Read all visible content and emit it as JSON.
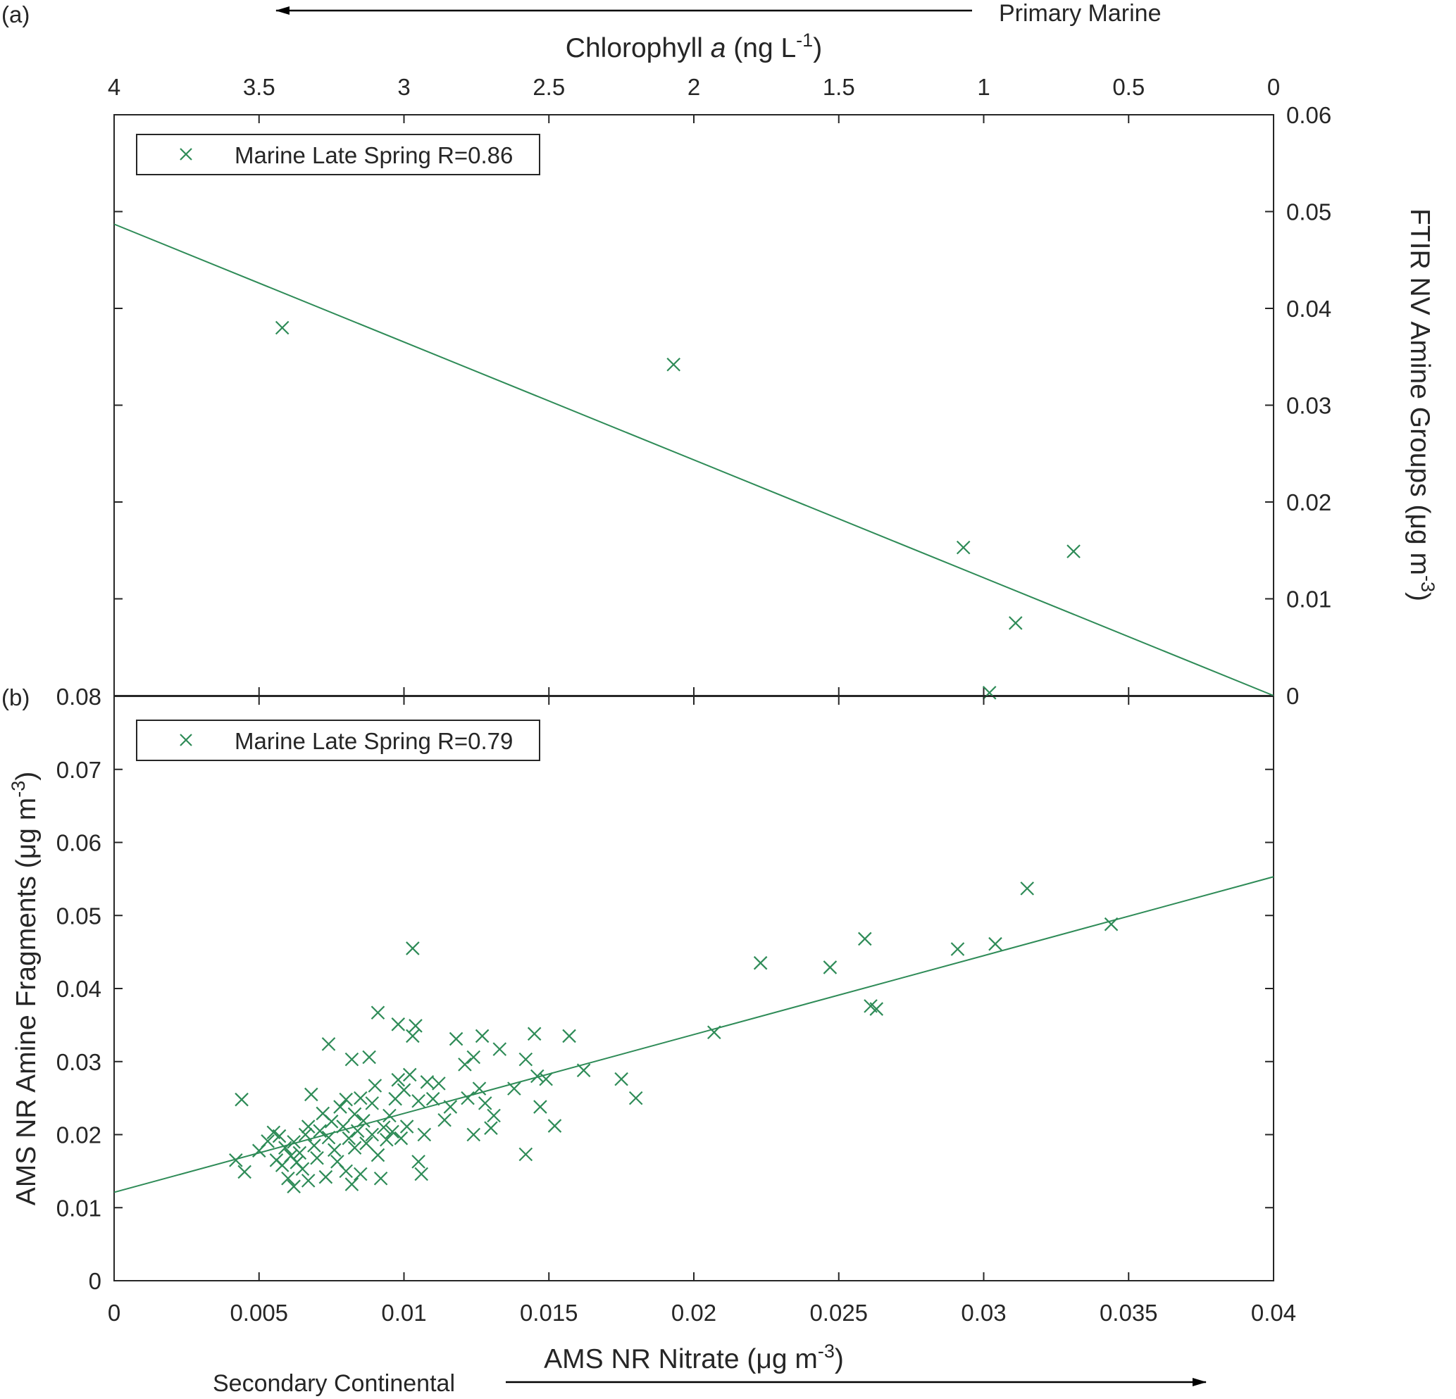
{
  "chart_data": [
    {
      "panel_label": "(a)",
      "type": "scatter",
      "xlabel": {
        "pre": "Chlorophyll ",
        "ital": "a",
        "post": " (ng  L",
        "sup": "-1",
        "end": ")"
      },
      "ylabel": {
        "pre": "FTIR NV Amine Groups (μg m",
        "sup": "-3",
        "end": ")"
      },
      "xlim": [
        4,
        0
      ],
      "ylim": [
        0,
        0.06
      ],
      "x_ticks": [
        "4",
        "3.5",
        "3",
        "2.5",
        "2",
        "1.5",
        "1",
        "0.5",
        "0"
      ],
      "x_tick_values": [
        4,
        3.5,
        3,
        2.5,
        2,
        1.5,
        1,
        0.5,
        0
      ],
      "y_ticks": [
        "0",
        "0.01",
        "0.02",
        "0.03",
        "0.04",
        "0.05",
        "0.06"
      ],
      "y_tick_values": [
        0,
        0.01,
        0.02,
        0.03,
        0.04,
        0.05,
        0.06
      ],
      "direction_label": "Primary Marine",
      "color": "#2e8b57",
      "legend": {
        "label": "Marine Late Spring R=0.86",
        "position": "top-left"
      },
      "points": [
        [
          3.42,
          0.038
        ],
        [
          2.07,
          0.0342
        ],
        [
          1.07,
          0.0153
        ],
        [
          0.69,
          0.0149
        ],
        [
          0.89,
          0.0075
        ],
        [
          0.98,
          0.0003
        ]
      ],
      "fit_line": [
        [
          4,
          0.0487
        ],
        [
          0,
          0.0
        ]
      ]
    },
    {
      "panel_label": "(b)",
      "type": "scatter",
      "xlabel": {
        "pre": "AMS NR Nitrate (μg m",
        "sup": "-3",
        "end": ")"
      },
      "ylabel": {
        "pre": "AMS NR Amine Fragments (μg m",
        "sup": "-3",
        "end": ")"
      },
      "xlim": [
        0,
        0.04
      ],
      "ylim": [
        0,
        0.08
      ],
      "x_ticks": [
        "0",
        "0.005",
        "0.01",
        "0.015",
        "0.02",
        "0.025",
        "0.03",
        "0.035",
        "0.04"
      ],
      "x_tick_values": [
        0,
        0.005,
        0.01,
        0.015,
        0.02,
        0.025,
        0.03,
        0.035,
        0.04
      ],
      "y_ticks": [
        "0",
        "0.01",
        "0.02",
        "0.03",
        "0.04",
        "0.05",
        "0.06",
        "0.07",
        "0.08"
      ],
      "y_tick_values": [
        0,
        0.01,
        0.02,
        0.03,
        0.04,
        0.05,
        0.06,
        0.07,
        0.08
      ],
      "direction_label": "Secondary Continental",
      "color": "#2e8b57",
      "legend": {
        "label": "Marine Late Spring R=0.79",
        "position": "top-left"
      },
      "points": [
        [
          0.0044,
          0.0248
        ],
        [
          0.0042,
          0.0165
        ],
        [
          0.0045,
          0.0149
        ],
        [
          0.005,
          0.0178
        ],
        [
          0.0053,
          0.0191
        ],
        [
          0.0055,
          0.0203
        ],
        [
          0.0056,
          0.0165
        ],
        [
          0.0057,
          0.0198
        ],
        [
          0.0058,
          0.0158
        ],
        [
          0.0059,
          0.0182
        ],
        [
          0.006,
          0.014
        ],
        [
          0.0061,
          0.0171
        ],
        [
          0.0062,
          0.0129
        ],
        [
          0.0062,
          0.019
        ],
        [
          0.0063,
          0.0162
        ],
        [
          0.0064,
          0.0175
        ],
        [
          0.0065,
          0.0153
        ],
        [
          0.0066,
          0.02
        ],
        [
          0.0067,
          0.0211
        ],
        [
          0.0067,
          0.0137
        ],
        [
          0.0068,
          0.0255
        ],
        [
          0.0069,
          0.0185
        ],
        [
          0.007,
          0.0168
        ],
        [
          0.0071,
          0.0205
        ],
        [
          0.0072,
          0.0229
        ],
        [
          0.0073,
          0.0142
        ],
        [
          0.0074,
          0.0324
        ],
        [
          0.0074,
          0.0196
        ],
        [
          0.0075,
          0.0218
        ],
        [
          0.0076,
          0.0179
        ],
        [
          0.0077,
          0.0163
        ],
        [
          0.0078,
          0.0238
        ],
        [
          0.0079,
          0.0211
        ],
        [
          0.008,
          0.015
        ],
        [
          0.008,
          0.0248
        ],
        [
          0.0081,
          0.0195
        ],
        [
          0.0082,
          0.0132
        ],
        [
          0.0082,
          0.0303
        ],
        [
          0.0083,
          0.0228
        ],
        [
          0.0083,
          0.0182
        ],
        [
          0.0084,
          0.0205
        ],
        [
          0.0085,
          0.025
        ],
        [
          0.0085,
          0.0146
        ],
        [
          0.0086,
          0.0219
        ],
        [
          0.0087,
          0.0188
        ],
        [
          0.0088,
          0.0306
        ],
        [
          0.0089,
          0.0243
        ],
        [
          0.0089,
          0.02
        ],
        [
          0.009,
          0.0267
        ],
        [
          0.0091,
          0.0367
        ],
        [
          0.0091,
          0.0172
        ],
        [
          0.0092,
          0.014
        ],
        [
          0.0093,
          0.021
        ],
        [
          0.0094,
          0.0193
        ],
        [
          0.0095,
          0.0226
        ],
        [
          0.0096,
          0.0204
        ],
        [
          0.0097,
          0.0249
        ],
        [
          0.0098,
          0.0351
        ],
        [
          0.0098,
          0.0275
        ],
        [
          0.0099,
          0.0195
        ],
        [
          0.01,
          0.0261
        ],
        [
          0.0101,
          0.0211
        ],
        [
          0.0102,
          0.0282
        ],
        [
          0.0103,
          0.0335
        ],
        [
          0.0103,
          0.0455
        ],
        [
          0.0104,
          0.0349
        ],
        [
          0.0105,
          0.0246
        ],
        [
          0.0105,
          0.0163
        ],
        [
          0.0106,
          0.0146
        ],
        [
          0.0107,
          0.02
        ],
        [
          0.0108,
          0.0272
        ],
        [
          0.011,
          0.0249
        ],
        [
          0.0112,
          0.027
        ],
        [
          0.0114,
          0.022
        ],
        [
          0.0116,
          0.0238
        ],
        [
          0.0118,
          0.0331
        ],
        [
          0.0121,
          0.0296
        ],
        [
          0.0122,
          0.025
        ],
        [
          0.0124,
          0.0306
        ],
        [
          0.0124,
          0.02
        ],
        [
          0.0126,
          0.0263
        ],
        [
          0.0127,
          0.0335
        ],
        [
          0.0128,
          0.0243
        ],
        [
          0.013,
          0.0209
        ],
        [
          0.0131,
          0.0226
        ],
        [
          0.0133,
          0.0317
        ],
        [
          0.0138,
          0.0263
        ],
        [
          0.0142,
          0.0303
        ],
        [
          0.0142,
          0.0173
        ],
        [
          0.0145,
          0.0338
        ],
        [
          0.0146,
          0.028
        ],
        [
          0.0147,
          0.0238
        ],
        [
          0.0149,
          0.0276
        ],
        [
          0.0152,
          0.0212
        ],
        [
          0.0157,
          0.0335
        ],
        [
          0.0162,
          0.0288
        ],
        [
          0.0175,
          0.0276
        ],
        [
          0.018,
          0.025
        ],
        [
          0.0207,
          0.034
        ],
        [
          0.0223,
          0.0435
        ],
        [
          0.0247,
          0.0429
        ],
        [
          0.0259,
          0.0468
        ],
        [
          0.0261,
          0.0376
        ],
        [
          0.0263,
          0.0372
        ],
        [
          0.0291,
          0.0454
        ],
        [
          0.0304,
          0.0461
        ],
        [
          0.0315,
          0.0537
        ],
        [
          0.0344,
          0.0488
        ]
      ],
      "fit_line": [
        [
          0,
          0.0121
        ],
        [
          0.04,
          0.0553
        ]
      ]
    }
  ]
}
